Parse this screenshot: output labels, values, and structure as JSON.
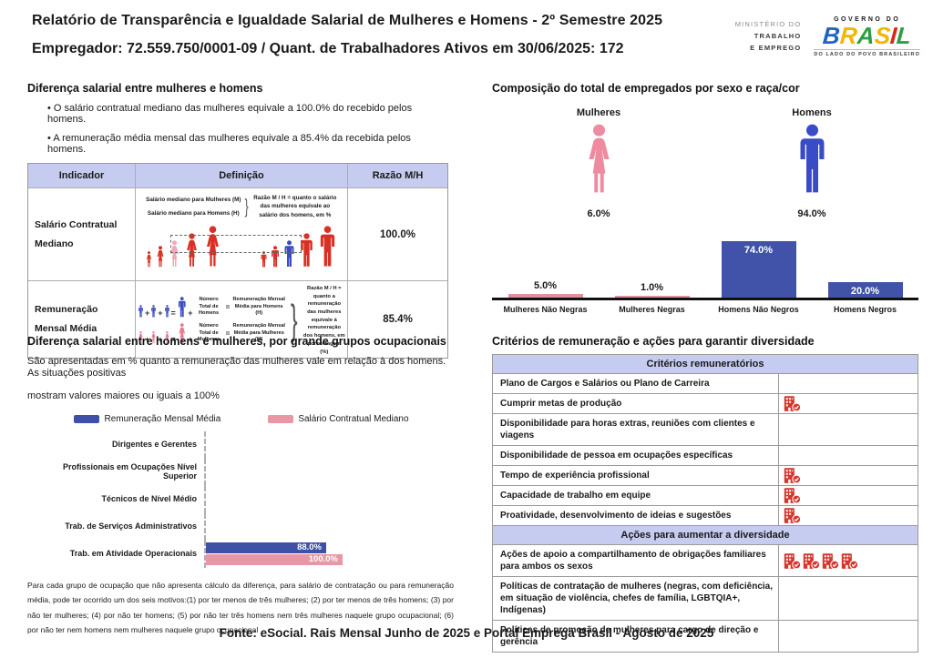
{
  "header": {
    "title": "Relatório de Transparência e Igualdade Salarial de Mulheres e Homens - 2º Semestre 2025",
    "subtitle": "Empregador: 72.559.750/0001-09     /     Quant. de Trabalhadores Ativos em 30/06/2025: 172",
    "ministry_lines": [
      "MINISTÉRIO DO",
      "TRABALHO",
      "E EMPREGO"
    ],
    "gov_top": "GOVERNO DO",
    "gov_bottom": "DO LADO DO POVO BRASILEIRO",
    "brasil_letters": [
      {
        "ch": "B",
        "c": "#1f63c4"
      },
      {
        "ch": "R",
        "c": "#f2b705"
      },
      {
        "ch": "A",
        "c": "#2e9e41"
      },
      {
        "ch": "S",
        "c": "#f2b705"
      },
      {
        "ch": "I",
        "c": "#d7281f"
      },
      {
        "ch": "L",
        "c": "#2e9e41"
      }
    ]
  },
  "salary_diff": {
    "heading": "Diferença salarial entre mulheres e homens",
    "bullets": [
      "O salário contratual mediano das mulheres equivale a 100.0% do recebido pelos homens.",
      "A remuneração média mensal das mulheres equivale a 85.4% da recebida pelos homens."
    ],
    "table": {
      "headers": [
        "Indicador",
        "Definição",
        "Razão M/H"
      ],
      "rows": [
        {
          "indicator": "Salário Contratual Mediano",
          "ratio": "100.0%",
          "def_lines": [
            "Salário mediano para Mulheres (M)",
            "Salário mediano para Homens (H)"
          ],
          "def_note": "Razão M / H = quanto o salário das mulheres equivale ao salário dos homens, em %",
          "figures_left": [
            {
              "t": "f",
              "c": "#d93025",
              "h": 18
            },
            {
              "t": "f",
              "c": "#d93025",
              "h": 24
            },
            {
              "t": "f",
              "c": "#f2a7b4",
              "h": 30
            },
            {
              "t": "f",
              "c": "#d93025",
              "h": 38
            },
            {
              "t": "f",
              "c": "#d93025",
              "h": 46
            }
          ],
          "figures_right": [
            {
              "t": "m",
              "c": "#d93025",
              "h": 18
            },
            {
              "t": "m",
              "c": "#d93025",
              "h": 24
            },
            {
              "t": "m",
              "c": "#3b4cc0",
              "h": 30
            },
            {
              "t": "m",
              "c": "#d93025",
              "h": 38
            },
            {
              "t": "m",
              "c": "#d93025",
              "h": 46
            }
          ]
        },
        {
          "indicator": "Remuneração Mensal Média",
          "ratio": "85.4%",
          "men_formula": {
            "count_label": "Número Total de Homens",
            "result_label": "Remuneração Mensal Média para Homens (H)",
            "fig": {
              "t": "m",
              "c": "#3b4cc0"
            }
          },
          "women_formula": {
            "count_label": "Número Total de Mulheres",
            "result_label": "Remuneração Mensal Média para Mulheres (M)",
            "fig": {
              "t": "f",
              "c": "#e8798d"
            }
          },
          "def_note": "Razão M / H = quanto a remuneração das mulheres equivale à remuneração dos homens, em porcentagem (%)"
        }
      ]
    }
  },
  "composition": {
    "heading": "Composição do total de empregados por sexo e raça/cor",
    "female_label": "Mulheres",
    "male_label": "Homens",
    "female_pct": "6.0%",
    "male_pct": "94.0%",
    "female_color": "#ee8ba0",
    "male_color": "#3a4bc8"
  },
  "occupational": {
    "heading": "Diferença salarial entre homens e mulheres, por grande grupos ocupacionais",
    "desc_lines": [
      "São apresentadas em % quanto a remuneração das mulheres vale em relação à dos homens. As situações positivas",
      "mostram valores maiores ou iguais a 100%"
    ],
    "legend": [
      {
        "label": "Remuneração Mensal Média",
        "color": "#3f51a5"
      },
      {
        "label": "Salário Contratual Mediano",
        "color": "#e897a4"
      }
    ],
    "footnote": "Para cada grupo de ocupação que não apresenta cálculo da diferença, para salário de contratação ou para remuneração média, pode ter ocorrido um dos seis motivos:(1) por ter menos de três mulheres; (2) por ter menos de três homens; (3) por não ter mulheres; (4) por não ter homens; (5) por não ter três homens nem três mulheres naquele grupo ocupacional; (6) por não ter nem homens nem mulheres naquele grupo ocupacional"
  },
  "criteria": {
    "heading": "Critérios de remuneração e ações para garantir diversidade",
    "icon_color": "#d6362b",
    "sections": [
      {
        "title": "Critérios remuneratórios",
        "rows": [
          {
            "label": "Plano de Cargos e Salários ou Plano de Carreira",
            "icons": 0
          },
          {
            "label": "Cumprir metas de produção",
            "icons": 1
          },
          {
            "label": "Disponibilidade para horas extras, reuniões com clientes e viagens",
            "icons": 0
          },
          {
            "label": "Disponibilidade de pessoa em ocupações específicas",
            "icons": 0
          },
          {
            "label": "Tempo de experiência profissional",
            "icons": 1
          },
          {
            "label": "Capacidade de trabalho em equipe",
            "icons": 1
          },
          {
            "label": "Proatividade, desenvolvimento de ideias e sugestões",
            "icons": 1
          }
        ]
      },
      {
        "title": "Ações para aumentar a diversidade",
        "rows": [
          {
            "label": "Ações de apoio a compartilhamento de obrigações familiares para ambos os sexos",
            "icons": 4
          },
          {
            "label": "Políticas de contratação de mulheres (negras, com deficiência, em situação de violência, chefes de família, LGBTQIA+, Indígenas)",
            "icons": 0
          },
          {
            "label": "Políticas de promoção de mulheres para cargo de direção e gerência",
            "icons": 0
          }
        ]
      }
    ]
  },
  "footer": "Fonte: eSocial. Rais Mensal Junho de 2025 e Portal Emprega Brasil - Agosto de 2025",
  "chart_data": [
    {
      "type": "bar",
      "title": "Composição do total de empregados por sexo e raça/cor",
      "categories": [
        "Mulheres Não Negras",
        "Mulheres Negras",
        "Homens Não Negros",
        "Homens Negros"
      ],
      "values": [
        5.0,
        1.0,
        74.0,
        20.0
      ],
      "unit": "%",
      "colors": [
        "#e091a0",
        "#e091a0",
        "#4053a8",
        "#4053a8"
      ],
      "ylim": [
        0,
        100
      ],
      "grid": false,
      "legend_position": "none"
    },
    {
      "type": "bar-horizontal",
      "title": "Diferença salarial entre homens e mulheres, por grande grupos ocupacionais",
      "categories": [
        "Dirigentes e Gerentes",
        "Profissionais em Ocupações Nível Superior",
        "Técnicos de Nível Médio",
        "Trab. de Serviços Administrativos",
        "Trab. em Atividade Operacionais"
      ],
      "series": [
        {
          "name": "Remuneração Mensal Média",
          "color": "#3f51a5",
          "values": [
            null,
            null,
            null,
            null,
            88.0
          ]
        },
        {
          "name": "Salário Contratual Mediano",
          "color": "#e897a4",
          "values": [
            null,
            null,
            null,
            null,
            100.0
          ]
        }
      ],
      "unit": "%",
      "xlim": [
        0,
        100
      ],
      "legend_position": "top"
    },
    {
      "type": "pictogram",
      "title": "Composição do total de empregados por sexo",
      "categories": [
        "Mulheres",
        "Homens"
      ],
      "values": [
        6.0,
        94.0
      ],
      "unit": "%"
    }
  ]
}
